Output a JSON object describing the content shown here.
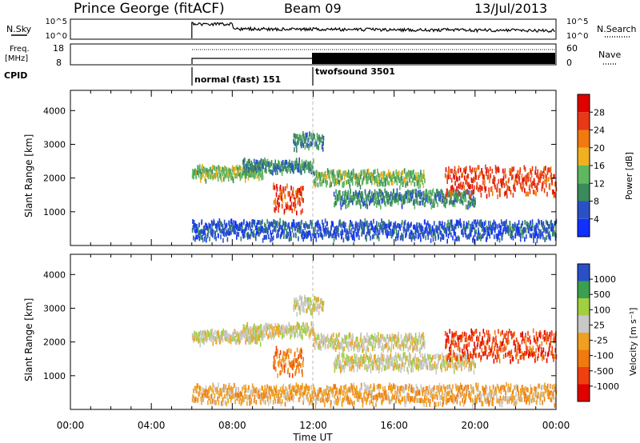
{
  "header": {
    "station": "Prince George (fitACF)",
    "beam": "Beam 09",
    "date": "13/Jul/2013"
  },
  "top_panels": {
    "nsky": {
      "label": "N.Sky",
      "ticks": [
        "10^5",
        "10^0"
      ]
    },
    "nsearch": {
      "label": "N.Search",
      "ticks": [
        "10^5",
        "10^0"
      ]
    },
    "freq": {
      "label_line1": "Freq.",
      "label_line2": "[MHz]",
      "ticks": [
        "18",
        "8"
      ]
    },
    "nave": {
      "label": "Nave",
      "ticks": [
        "60",
        "0"
      ]
    },
    "cpid": {
      "label": "CPID",
      "modes": [
        {
          "name": "normal (fast) 151",
          "start_hour": 6
        },
        {
          "name": "twofsound 3501",
          "start_hour": 12
        }
      ]
    }
  },
  "time_axis": {
    "label": "Time UT",
    "tick_labels": [
      "00:00",
      "04:00",
      "08:00",
      "12:00",
      "16:00",
      "20:00",
      "00:00"
    ],
    "tick_hours": [
      0,
      4,
      8,
      12,
      16,
      20,
      24
    ]
  },
  "colors": {
    "power": [
      "#1030ff",
      "#2a50c8",
      "#3a8a5a",
      "#5fb85f",
      "#f0b020",
      "#f07a10",
      "#e83818",
      "#e00000"
    ],
    "velocity": [
      "#e00000",
      "#f04010",
      "#f07a10",
      "#f0a020",
      "#c8c8c8",
      "#a0d040",
      "#3aa050",
      "#2a50c8"
    ]
  },
  "chart_data": [
    {
      "type": "heatmap",
      "name": "power-panel",
      "ylabel": "Slant Range [km]",
      "xlabel": "",
      "ylim": [
        0,
        4600
      ],
      "xlim": [
        0,
        24
      ],
      "y_ticks": [
        1000,
        2000,
        3000,
        4000
      ],
      "colorbar": {
        "label": "Power [dB]",
        "ticks": [
          "4",
          "8",
          "12",
          "16",
          "20",
          "24",
          "28"
        ]
      },
      "data_start_hour": 6,
      "echo_bands": [
        {
          "start_hour": 6.0,
          "end_hour": 9.5,
          "range_km": [
            2000,
            2300
          ],
          "level": 3
        },
        {
          "start_hour": 8.5,
          "end_hour": 12.0,
          "range_km": [
            2200,
            2500
          ],
          "level": 2
        },
        {
          "start_hour": 10.0,
          "end_hour": 11.5,
          "range_km": [
            1000,
            1800
          ],
          "level": 6
        },
        {
          "start_hour": 11.0,
          "end_hour": 12.5,
          "range_km": [
            2900,
            3300
          ],
          "level": 2
        },
        {
          "start_hour": 12.0,
          "end_hour": 17.5,
          "range_km": [
            1800,
            2200
          ],
          "level": 3
        },
        {
          "start_hour": 13.0,
          "end_hour": 20.0,
          "range_km": [
            1200,
            1600
          ],
          "level": 2
        },
        {
          "start_hour": 18.5,
          "end_hour": 24.0,
          "range_km": [
            1500,
            2300
          ],
          "level": 6
        },
        {
          "start_hour": 6.0,
          "end_hour": 24.0,
          "range_km": [
            200,
            700
          ],
          "level": 1
        }
      ]
    },
    {
      "type": "heatmap",
      "name": "velocity-panel",
      "ylabel": "Slant Range [km]",
      "xlabel": "Time UT",
      "ylim": [
        0,
        4600
      ],
      "xlim": [
        0,
        24
      ],
      "y_ticks": [
        1000,
        2000,
        3000,
        4000
      ],
      "colorbar": {
        "label": "Velocity [m s⁻¹]",
        "ticks": [
          "1000",
          "500",
          "100",
          "25",
          "-25",
          "-100",
          "-500",
          "-1000"
        ]
      },
      "data_start_hour": 6,
      "echo_bands": [
        {
          "start_hour": 6.0,
          "end_hour": 9.5,
          "range_km": [
            2000,
            2300
          ],
          "level": 4
        },
        {
          "start_hour": 8.5,
          "end_hour": 12.0,
          "range_km": [
            2200,
            2500
          ],
          "level": 4
        },
        {
          "start_hour": 10.0,
          "end_hour": 11.5,
          "range_km": [
            1000,
            1800
          ],
          "level": 2
        },
        {
          "start_hour": 11.0,
          "end_hour": 12.5,
          "range_km": [
            2900,
            3300
          ],
          "level": 4
        },
        {
          "start_hour": 12.0,
          "end_hour": 17.5,
          "range_km": [
            1800,
            2200
          ],
          "level": 4
        },
        {
          "start_hour": 13.0,
          "end_hour": 20.0,
          "range_km": [
            1200,
            1600
          ],
          "level": 4
        },
        {
          "start_hour": 18.5,
          "end_hour": 24.0,
          "range_km": [
            1500,
            2300
          ],
          "level": 1
        },
        {
          "start_hour": 6.0,
          "end_hour": 24.0,
          "range_km": [
            200,
            700
          ],
          "level": 3
        }
      ]
    }
  ]
}
